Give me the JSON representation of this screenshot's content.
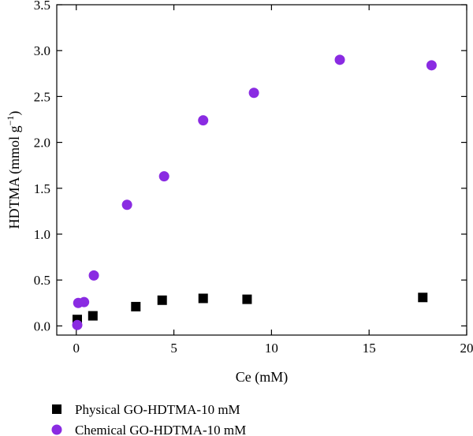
{
  "chart_data": {
    "type": "scatter",
    "xlabel": "Ce (mM)",
    "ylabel_main": "HDTMA (mmol g",
    "ylabel_sup": "−1",
    "ylabel_close": ")",
    "xlim": [
      -1,
      20
    ],
    "ylim": [
      -0.1,
      3.5
    ],
    "xticks": [
      0,
      5,
      10,
      15,
      20
    ],
    "xtick_labels": [
      "0",
      "5",
      "10",
      "15",
      "20"
    ],
    "yticks": [
      0.0,
      0.5,
      1.0,
      1.5,
      2.0,
      2.5,
      3.0,
      3.5
    ],
    "ytick_labels": [
      "0.0",
      "0.5",
      "1.0",
      "1.5",
      "2.0",
      "2.5",
      "3.0",
      "3.5"
    ],
    "grid": false,
    "legend_position": "below",
    "series": [
      {
        "name": "Physical GO-HDTMA-10 mM",
        "marker": "square",
        "color": "#000000",
        "x": [
          0.05,
          0.85,
          3.05,
          4.4,
          6.5,
          8.75,
          17.75
        ],
        "y": [
          0.07,
          0.11,
          0.21,
          0.28,
          0.3,
          0.29,
          0.31
        ]
      },
      {
        "name": "Chemical GO-HDTMA-10 mM",
        "marker": "circle",
        "color": "#8a2be2",
        "x": [
          0.05,
          0.1,
          0.4,
          0.9,
          2.6,
          4.5,
          6.5,
          9.1,
          13.5,
          18.2
        ],
        "y": [
          0.01,
          0.25,
          0.26,
          0.55,
          1.32,
          1.63,
          2.24,
          2.54,
          2.9,
          2.84
        ]
      }
    ]
  }
}
